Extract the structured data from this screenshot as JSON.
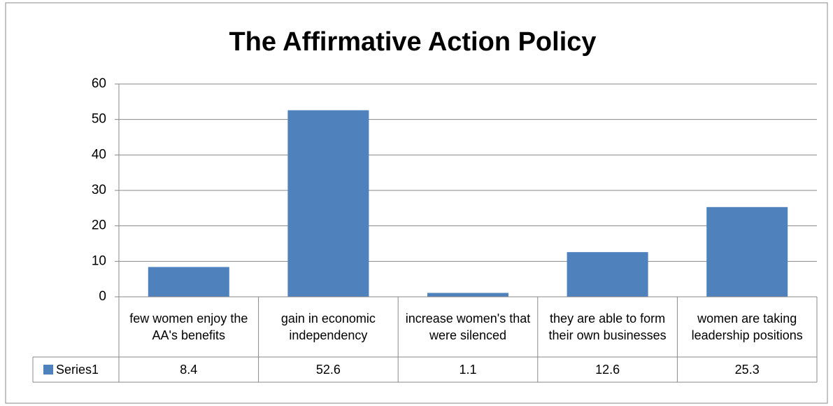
{
  "chart_data": {
    "type": "bar",
    "title": "The Affirmative Action Policy",
    "categories": [
      "few women enjoy the AA's benefits",
      "gain in economic independency",
      "increase women's that were silenced",
      "they are able to form their own businesses",
      "women are taking leadership positions"
    ],
    "series": [
      {
        "name": "Series1",
        "color": "#4f81bd",
        "values": [
          8.4,
          52.6,
          1.1,
          12.6,
          25.3
        ]
      }
    ],
    "ylim": [
      0,
      60
    ],
    "yticks": [
      0,
      10,
      20,
      30,
      40,
      50,
      60
    ],
    "grid": true,
    "data_table": true
  }
}
